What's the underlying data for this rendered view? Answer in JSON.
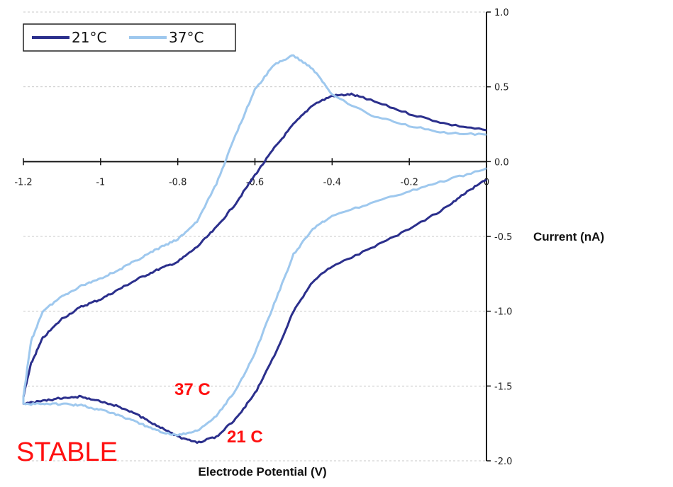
{
  "chart_data": {
    "type": "line",
    "xlabel": "Electrode Potential (V)",
    "ylabel": "Current (nA)",
    "xlim": [
      -1.2,
      0
    ],
    "ylim": [
      -2.0,
      1.0
    ],
    "x_ticks": [
      "-1.2",
      "-1",
      "-0.8",
      "-0.6",
      "-0.4",
      "-0.2",
      "0"
    ],
    "y_ticks": [
      "1.0",
      "0.5",
      "0.0",
      "-0.5",
      "-1.0",
      "-1.5",
      "-2.0"
    ],
    "grid": "horizontal dashed",
    "legend_position": "top-left",
    "series": [
      {
        "name": "21°C",
        "color": "#2b2f8c",
        "points": [
          [
            0,
            -0.12
          ],
          [
            -0.05,
            -0.2
          ],
          [
            -0.1,
            -0.3
          ],
          [
            -0.2,
            -0.45
          ],
          [
            -0.3,
            -0.58
          ],
          [
            -0.4,
            -0.7
          ],
          [
            -0.45,
            -0.8
          ],
          [
            -0.5,
            -1.0
          ],
          [
            -0.55,
            -1.3
          ],
          [
            -0.6,
            -1.55
          ],
          [
            -0.65,
            -1.72
          ],
          [
            -0.7,
            -1.84
          ],
          [
            -0.75,
            -1.88
          ],
          [
            -0.8,
            -1.84
          ],
          [
            -0.85,
            -1.77
          ],
          [
            -0.9,
            -1.7
          ],
          [
            -0.95,
            -1.64
          ],
          [
            -1.0,
            -1.6
          ],
          [
            -1.05,
            -1.57
          ],
          [
            -1.1,
            -1.58
          ],
          [
            -1.15,
            -1.6
          ],
          [
            -1.2,
            -1.62
          ],
          [
            -1.2,
            -1.57
          ],
          [
            -1.18,
            -1.35
          ],
          [
            -1.15,
            -1.18
          ],
          [
            -1.1,
            -1.05
          ],
          [
            -1.05,
            -0.97
          ],
          [
            -1.0,
            -0.92
          ],
          [
            -0.95,
            -0.85
          ],
          [
            -0.9,
            -0.78
          ],
          [
            -0.85,
            -0.72
          ],
          [
            -0.8,
            -0.67
          ],
          [
            -0.75,
            -0.57
          ],
          [
            -0.7,
            -0.44
          ],
          [
            -0.65,
            -0.28
          ],
          [
            -0.6,
            -0.09
          ],
          [
            -0.55,
            0.09
          ],
          [
            -0.5,
            0.25
          ],
          [
            -0.45,
            0.38
          ],
          [
            -0.4,
            0.44
          ],
          [
            -0.35,
            0.45
          ],
          [
            -0.3,
            0.41
          ],
          [
            -0.2,
            0.32
          ],
          [
            -0.1,
            0.25
          ],
          [
            0,
            0.21
          ]
        ]
      },
      {
        "name": "37°C",
        "color": "#9ec8ee",
        "points": [
          [
            0,
            -0.05
          ],
          [
            -0.1,
            -0.12
          ],
          [
            -0.2,
            -0.2
          ],
          [
            -0.3,
            -0.28
          ],
          [
            -0.4,
            -0.36
          ],
          [
            -0.45,
            -0.45
          ],
          [
            -0.5,
            -0.62
          ],
          [
            -0.55,
            -0.95
          ],
          [
            -0.6,
            -1.28
          ],
          [
            -0.65,
            -1.53
          ],
          [
            -0.7,
            -1.7
          ],
          [
            -0.75,
            -1.8
          ],
          [
            -0.8,
            -1.83
          ],
          [
            -0.85,
            -1.8
          ],
          [
            -0.9,
            -1.75
          ],
          [
            -0.95,
            -1.7
          ],
          [
            -1.0,
            -1.66
          ],
          [
            -1.05,
            -1.63
          ],
          [
            -1.1,
            -1.62
          ],
          [
            -1.15,
            -1.62
          ],
          [
            -1.2,
            -1.62
          ],
          [
            -1.2,
            -1.57
          ],
          [
            -1.18,
            -1.2
          ],
          [
            -1.15,
            -1.0
          ],
          [
            -1.1,
            -0.9
          ],
          [
            -1.05,
            -0.83
          ],
          [
            -1.0,
            -0.78
          ],
          [
            -0.95,
            -0.72
          ],
          [
            -0.9,
            -0.65
          ],
          [
            -0.85,
            -0.58
          ],
          [
            -0.8,
            -0.52
          ],
          [
            -0.75,
            -0.4
          ],
          [
            -0.7,
            -0.15
          ],
          [
            -0.65,
            0.18
          ],
          [
            -0.6,
            0.48
          ],
          [
            -0.55,
            0.65
          ],
          [
            -0.5,
            0.71
          ],
          [
            -0.45,
            0.62
          ],
          [
            -0.4,
            0.45
          ],
          [
            -0.3,
            0.31
          ],
          [
            -0.2,
            0.24
          ],
          [
            -0.1,
            0.19
          ],
          [
            0,
            0.18
          ]
        ]
      }
    ],
    "annotations": [
      {
        "text": "37 C",
        "color": "#ff1010"
      },
      {
        "text": "21 C",
        "color": "#ff1010"
      },
      {
        "text": "STABLE",
        "color": "#ff1010"
      }
    ]
  }
}
